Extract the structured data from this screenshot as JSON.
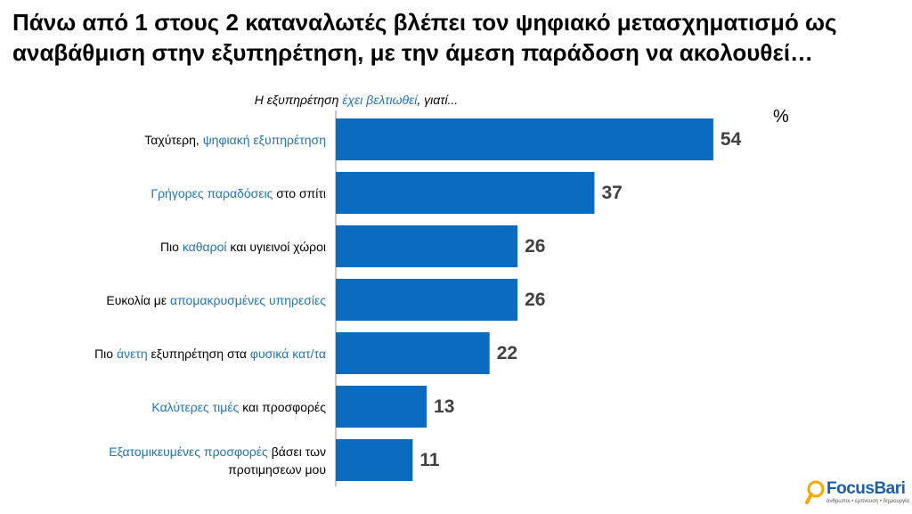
{
  "chart_data": {
    "type": "bar",
    "orientation": "horizontal",
    "title": "Πάνω από 1 στους 2 καταναλωτές βλέπει τον ψηφιακό μετασχηματισμό ως αναβάθμιση στην εξυπηρέτηση, με την άμεση παράδοση να ακολουθεί…",
    "subtitle_parts": [
      {
        "text": "Η εξυπηρέτηση "
      },
      {
        "text": "έχει βελτιωθεί",
        "highlight": true
      },
      {
        "text": ", γιατί..."
      }
    ],
    "unit_label": "%",
    "categories": [
      [
        {
          "text": "Ταχύτερη, "
        },
        {
          "text": "ψηφιακή εξυπηρέτηση",
          "highlight": true
        }
      ],
      [
        {
          "text": "Γρήγορες παραδόσεις",
          "highlight": true
        },
        {
          "text": " στο σπίτι"
        }
      ],
      [
        {
          "text": "Πιο "
        },
        {
          "text": "καθαροί",
          "highlight": true
        },
        {
          "text": " και υγιεινοί χώροι"
        }
      ],
      [
        {
          "text": "Ευκολία με "
        },
        {
          "text": "απομακρυσμένες υπηρεσίες",
          "highlight": true
        }
      ],
      [
        {
          "text": "Πιο "
        },
        {
          "text": "άνετη",
          "highlight": true
        },
        {
          "text": " εξυπηρέτηση στα "
        },
        {
          "text": "φυσικά κατ/τα",
          "highlight": true
        }
      ],
      [
        {
          "text": "Καλύτερες τιμές",
          "highlight": true
        },
        {
          "text": " και προσφορές"
        }
      ],
      [
        {
          "text": "Εξατομικευμένες προσφορές",
          "highlight": true
        },
        {
          "text": " βάσει των προτιμησεων μου"
        }
      ]
    ],
    "values": [
      54,
      37,
      26,
      26,
      22,
      13,
      11
    ],
    "color": "#0b6cbf",
    "logo": {
      "name": "FocusBari",
      "tagline": "άνθρωποι • έμπνευση • δημιουργία"
    }
  }
}
